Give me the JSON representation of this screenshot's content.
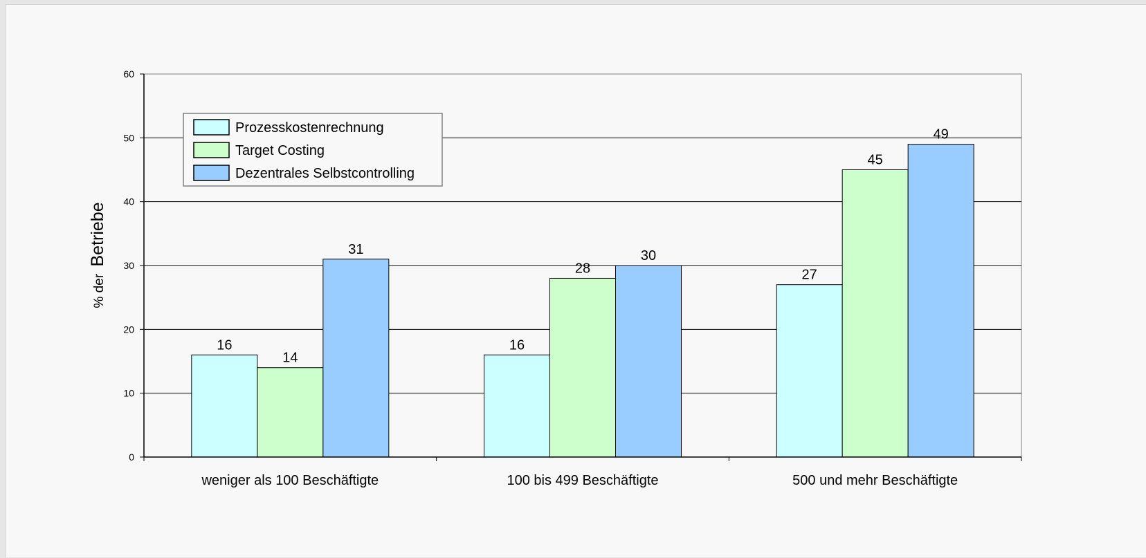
{
  "chart_data": {
    "type": "bar",
    "title": "",
    "xlabel": "",
    "ylabel": {
      "prefix": "% der",
      "main": "Betriebe"
    },
    "ylim": [
      0,
      60
    ],
    "yticks": [
      0,
      10,
      20,
      30,
      40,
      50,
      60
    ],
    "grid": true,
    "legend_position": "top-left",
    "categories": [
      "weniger als 100 Beschäftigte",
      "100 bis 499 Beschäftigte",
      "500 und mehr Beschäftigte"
    ],
    "series": [
      {
        "name": "Prozesskostenrechnung",
        "color": "#ccffff",
        "values": [
          16,
          16,
          27
        ]
      },
      {
        "name": "Target Costing",
        "color": "#ccffcc",
        "values": [
          14,
          28,
          45
        ]
      },
      {
        "name": "Dezentrales Selbstcontrolling",
        "color": "#99ccff",
        "values": [
          31,
          30,
          49
        ]
      }
    ]
  }
}
